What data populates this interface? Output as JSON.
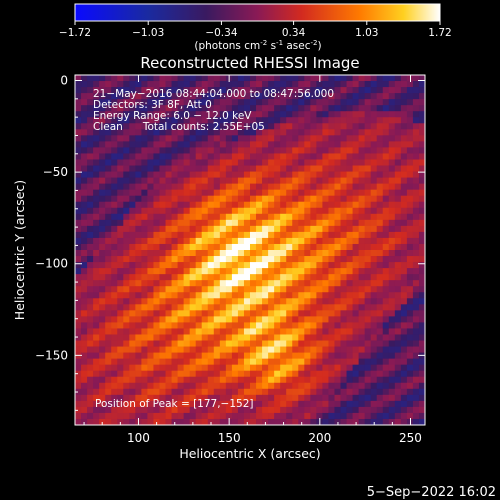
{
  "colorbar": {
    "ticks": [
      "-1.72",
      "-1.03",
      "-0.34",
      "0.34",
      "1.03",
      "1.72"
    ],
    "tick_values": [
      -1.72,
      -1.03,
      -0.34,
      0.34,
      1.03,
      1.72
    ],
    "range": [
      -1.72,
      1.72
    ],
    "unit_main": "(photons cm",
    "unit_sup1": "-2",
    "unit_mid1": " s",
    "unit_sup2": "-1",
    "unit_mid2": " asec",
    "unit_sup3": "-2",
    "unit_end": ")"
  },
  "chart_data": {
    "type": "heatmap",
    "title": "Reconstructed RHESSI Image",
    "xlabel": "Heliocentric X (arcsec)",
    "ylabel": "Heliocentric Y (arcsec)",
    "xlim": [
      65,
      258
    ],
    "ylim": [
      -188,
      3
    ],
    "x_ticks": [
      100,
      150,
      200,
      250
    ],
    "y_ticks": [
      0,
      -50,
      -100,
      -150
    ],
    "x_tick_labels": [
      "100",
      "150",
      "200",
      "250"
    ],
    "y_tick_labels": [
      "0",
      "−50",
      "−100",
      "−150"
    ],
    "annotations": [
      "21−May−2016 08:44:04.000 to 08:47:56.000",
      "Detectors: 3F 8F, Att 0",
      "Energy Range: 6.0 − 12.0 keV",
      "Clean      Total counts: 2.55E+05"
    ],
    "peak_label": "Position of Peak = [177,−152]",
    "peak": [
      177,
      -152
    ],
    "secondary_peak": [
      152,
      -88
    ],
    "colormap": "hot-diverging"
  },
  "footer": {
    "date": "5−Sep−2022 16:02"
  }
}
